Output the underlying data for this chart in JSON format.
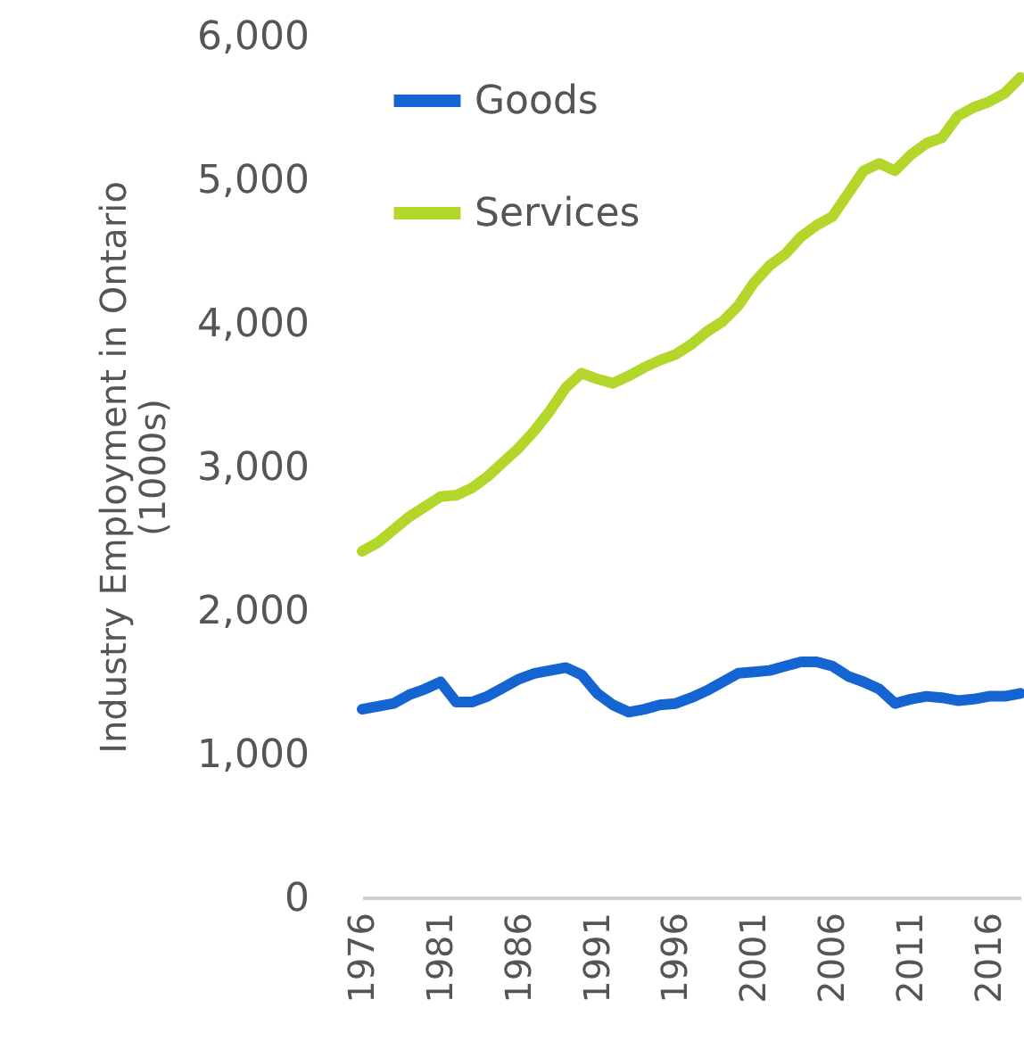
{
  "chart_data": {
    "type": "line",
    "ylabel": "Industry Employment in Ontario (1000s)",
    "x": [
      1976,
      1977,
      1978,
      1979,
      1980,
      1981,
      1982,
      1983,
      1984,
      1985,
      1986,
      1987,
      1988,
      1989,
      1990,
      1991,
      1992,
      1993,
      1994,
      1995,
      1996,
      1997,
      1998,
      1999,
      2000,
      2001,
      2002,
      2003,
      2004,
      2005,
      2006,
      2007,
      2008,
      2009,
      2010,
      2011,
      2012,
      2013,
      2014,
      2015,
      2016,
      2017,
      2018
    ],
    "series": [
      {
        "name": "Goods",
        "color": "#1464d2",
        "values": [
          1310,
          1330,
          1350,
          1410,
          1450,
          1500,
          1360,
          1360,
          1400,
          1460,
          1520,
          1560,
          1580,
          1600,
          1550,
          1420,
          1340,
          1290,
          1310,
          1340,
          1350,
          1390,
          1440,
          1500,
          1560,
          1570,
          1580,
          1610,
          1640,
          1640,
          1610,
          1540,
          1500,
          1450,
          1350,
          1380,
          1400,
          1390,
          1370,
          1380,
          1400,
          1400,
          1420
        ]
      },
      {
        "name": "Services",
        "color": "#b2d62a",
        "values": [
          2410,
          2470,
          2560,
          2650,
          2720,
          2790,
          2800,
          2850,
          2930,
          3030,
          3130,
          3250,
          3390,
          3550,
          3650,
          3610,
          3580,
          3630,
          3690,
          3740,
          3780,
          3850,
          3940,
          4010,
          4120,
          4280,
          4400,
          4480,
          4600,
          4680,
          4740,
          4900,
          5060,
          5110,
          5060,
          5170,
          5250,
          5290,
          5440,
          5500,
          5540,
          5600,
          5710
        ]
      }
    ],
    "xlim": [
      1976,
      2018
    ],
    "xticks": [
      1976,
      1981,
      1986,
      1991,
      1996,
      2001,
      2006,
      2011,
      2016
    ],
    "ylim": [
      0,
      6000
    ],
    "yticks": [
      {
        "value": 0,
        "label": "0"
      },
      {
        "value": 1000,
        "label": "1,000"
      },
      {
        "value": 2000,
        "label": "2,000"
      },
      {
        "value": 3000,
        "label": "3,000"
      },
      {
        "value": 4000,
        "label": "4,000"
      },
      {
        "value": 5000,
        "label": "5,000"
      },
      {
        "value": 6000,
        "label": "6,000"
      }
    ],
    "grid": false,
    "legend": "top left",
    "marker": "none",
    "line_style": "solid"
  }
}
